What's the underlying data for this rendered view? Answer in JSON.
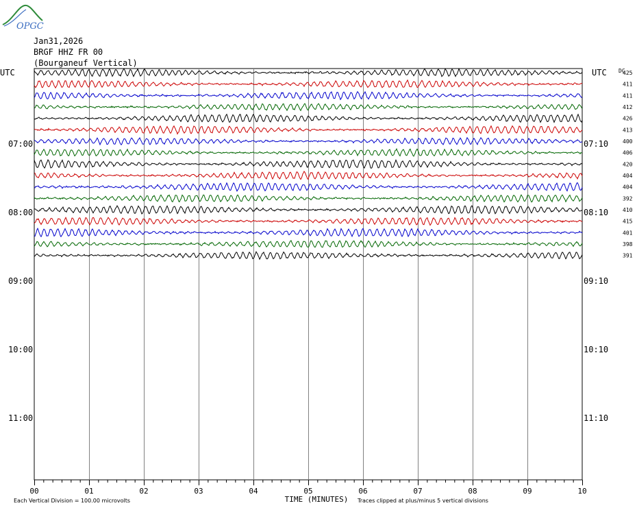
{
  "logo_text": "OPGC",
  "header": {
    "date": "Jan31,2026",
    "station": "BRGF HHZ FR 00",
    "location": "(Bourganeuf Vertical)"
  },
  "utc_left": "UTC",
  "utc_right": "UTC",
  "dc_label": "DC",
  "left_times": [
    "07:00",
    "08:00",
    "09:00",
    "10:00",
    "11:00"
  ],
  "right_times": [
    "07:10",
    "08:10",
    "09:10",
    "10:10",
    "11:10"
  ],
  "x_ticks": [
    "00",
    "01",
    "02",
    "03",
    "04",
    "05",
    "06",
    "07",
    "08",
    "09",
    "10"
  ],
  "x_title": "TIME (MINUTES)",
  "footer_left": "Each Vertical Division =  100.00 microvolts",
  "footer_right": "Traces clipped at plus/minus 5 vertical divisions",
  "colors": {
    "c1": "#000000",
    "c2": "#cc0000",
    "c3": "#0000cc",
    "c4": "#006600",
    "grid": "#808080"
  },
  "chart_data": {
    "type": "line",
    "title": "BRGF HHZ FR 00 (Bourganeuf Vertical)",
    "xlabel": "TIME (MINUTES)",
    "xlim": [
      0,
      10
    ],
    "trace_colors": [
      "#000000",
      "#cc0000",
      "#0000cc",
      "#006600"
    ],
    "dc_offsets": [
      425,
      411,
      411,
      412,
      426,
      413,
      400,
      406,
      420,
      404,
      404,
      392,
      410,
      415,
      401,
      398,
      391
    ]
  }
}
